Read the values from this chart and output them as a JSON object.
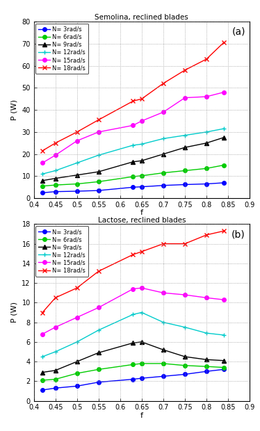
{
  "title_a": "Semolina, reclined blades",
  "title_b": "Lactose, reclined blades",
  "xlabel": "f",
  "ylabel": "P (W)",
  "label_a": "(a)",
  "label_b": "(b)",
  "x": [
    0.42,
    0.45,
    0.5,
    0.55,
    0.63,
    0.65,
    0.7,
    0.75,
    0.8,
    0.84
  ],
  "semolina": {
    "N3": [
      2.5,
      3.0,
      3.2,
      3.5,
      5.0,
      5.2,
      5.8,
      6.2,
      6.5,
      7.0
    ],
    "N6": [
      5.5,
      6.0,
      6.5,
      7.5,
      9.8,
      10.2,
      11.5,
      12.5,
      13.5,
      15.0
    ],
    "N9": [
      8.0,
      9.0,
      10.5,
      12.0,
      16.5,
      17.0,
      20.0,
      23.0,
      25.0,
      27.5
    ],
    "N12": [
      11.0,
      12.5,
      16.0,
      19.5,
      24.0,
      24.5,
      27.0,
      28.5,
      30.0,
      31.5
    ],
    "N15": [
      16.0,
      19.5,
      26.0,
      30.0,
      33.0,
      35.0,
      39.0,
      45.5,
      46.0,
      48.0
    ],
    "N18": [
      21.5,
      25.0,
      30.0,
      35.5,
      44.0,
      45.0,
      52.0,
      58.0,
      63.0,
      70.5
    ]
  },
  "lactose": {
    "N3": [
      1.1,
      1.3,
      1.5,
      1.9,
      2.2,
      2.3,
      2.5,
      2.7,
      3.0,
      3.2
    ],
    "N6": [
      2.1,
      2.2,
      2.8,
      3.2,
      3.7,
      3.8,
      3.8,
      3.6,
      3.5,
      3.4
    ],
    "N9": [
      2.9,
      3.1,
      4.0,
      4.9,
      5.9,
      6.0,
      5.2,
      4.5,
      4.2,
      4.1
    ],
    "N12": [
      4.5,
      5.0,
      6.0,
      7.2,
      8.8,
      9.0,
      8.0,
      7.5,
      6.9,
      6.7
    ],
    "N15": [
      6.8,
      7.5,
      8.5,
      9.5,
      11.4,
      11.5,
      11.0,
      10.8,
      10.5,
      10.3
    ],
    "N18": [
      9.0,
      10.5,
      11.5,
      13.2,
      14.9,
      15.2,
      16.0,
      16.0,
      16.9,
      17.3
    ]
  },
  "colors": {
    "N3": "#0000ff",
    "N6": "#00cc00",
    "N9": "#000000",
    "N12": "#00cccc",
    "N15": "#ff00ff",
    "N18": "#ff0000"
  },
  "markers": {
    "N3": "o",
    "N6": "o",
    "N9": "^",
    "N12": "+",
    "N15": "o",
    "N18": "x"
  },
  "legend_labels": {
    "N3": "N= 3rad/s",
    "N6": "N= 6rad/s",
    "N9": "N= 9rad/s",
    "N12": "N= 12rad/s",
    "N15": "N= 15rad/s",
    "N18": "N= 18rad/s"
  },
  "ylim_a": [
    0,
    80
  ],
  "ylim_b": [
    0,
    18
  ],
  "yticks_a": [
    0,
    10,
    20,
    30,
    40,
    50,
    60,
    70,
    80
  ],
  "yticks_b": [
    0,
    2,
    4,
    6,
    8,
    10,
    12,
    14,
    16,
    18
  ],
  "xlim": [
    0.4,
    0.9
  ],
  "xticks": [
    0.4,
    0.45,
    0.5,
    0.55,
    0.6,
    0.65,
    0.7,
    0.75,
    0.8,
    0.85,
    0.9
  ]
}
